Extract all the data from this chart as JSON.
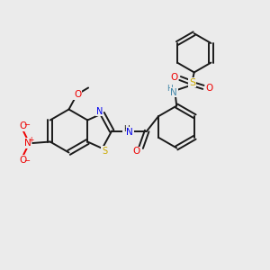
{
  "background_color": "#ebebeb",
  "bond_color": "#1a1a1a",
  "nitrogen_color": "#0000ee",
  "oxygen_color": "#ee0000",
  "sulfur_color": "#ccaa00",
  "sulfur_thiazole_color": "#ccaa00",
  "hn_color": "#4488aa",
  "figsize": [
    3.0,
    3.0
  ],
  "dpi": 100,
  "xlim": [
    0,
    10
  ],
  "ylim": [
    0,
    10
  ]
}
